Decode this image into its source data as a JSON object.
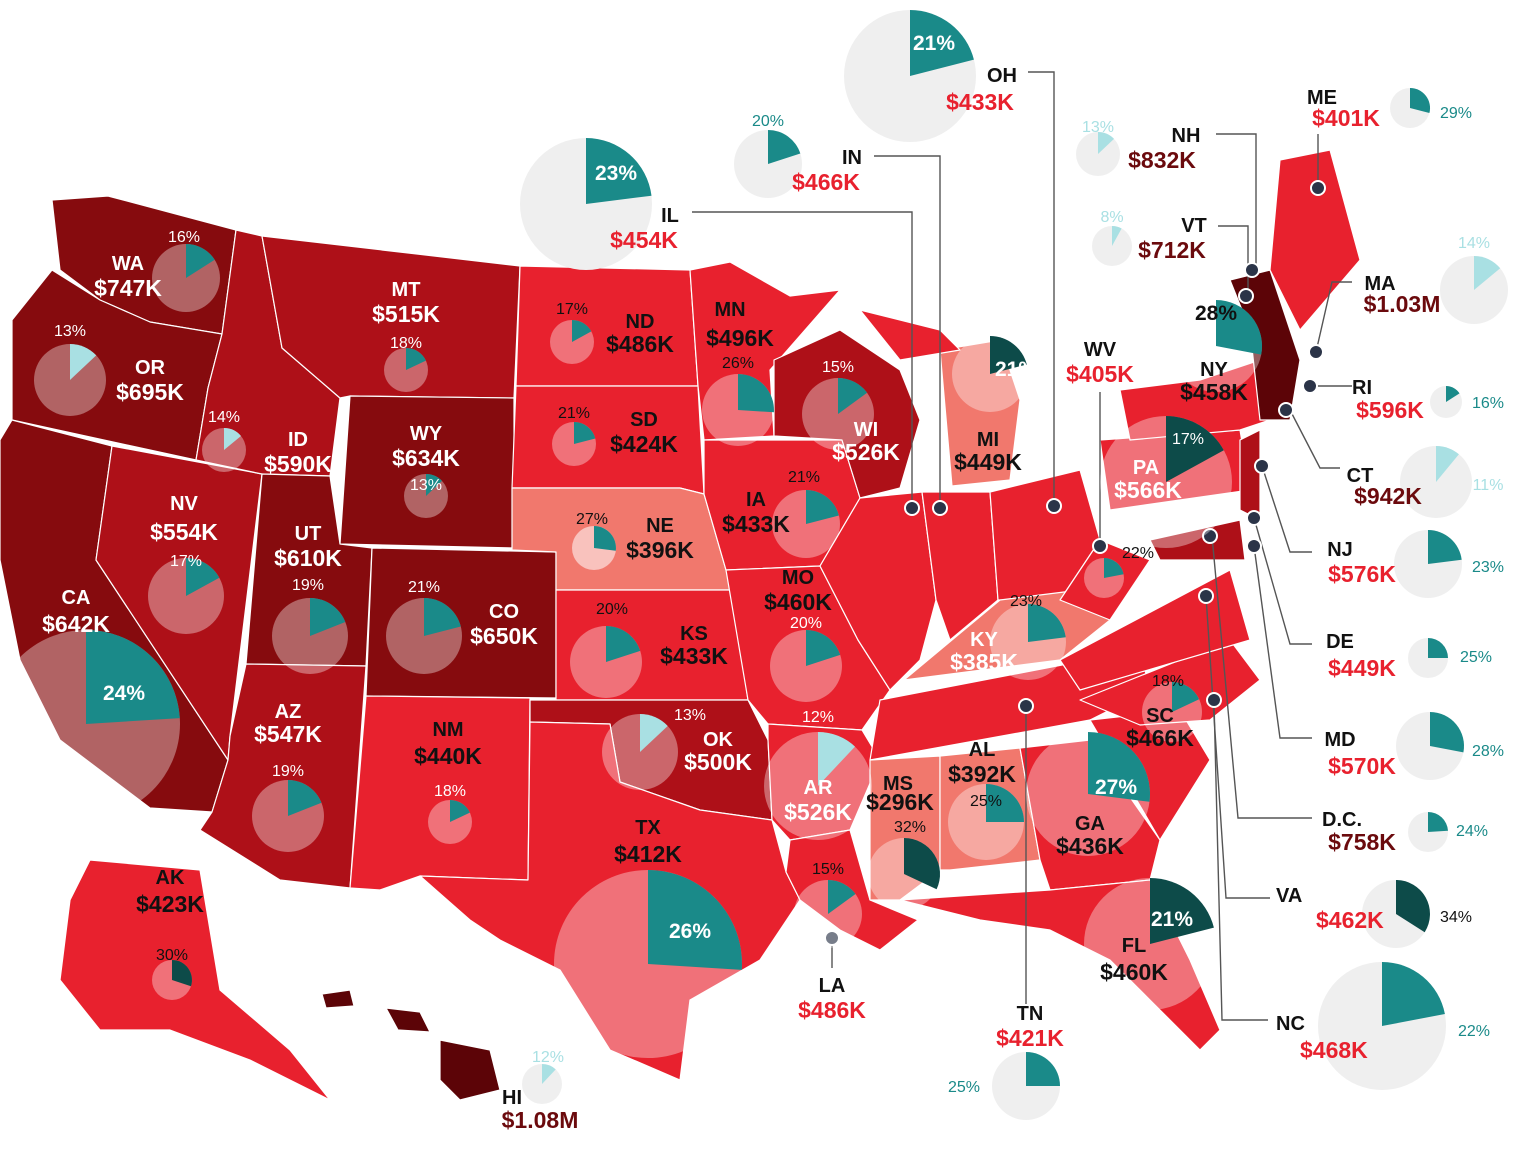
{
  "colors": {
    "tier1": "#e8212e",
    "tier2": "#ae1018",
    "tier3": "#860b0e",
    "tier4": "#5c0407",
    "tier_low": "#f1786d",
    "pie_bg": "#efefef",
    "pie_teal": "#1a8a89",
    "pie_light": "#a9e0e3",
    "pie_dark": "#0d4b49",
    "text_red": "#e8212e",
    "text_dark": "#6b0a0d",
    "text_black": "#111111",
    "leader": "#555555"
  },
  "states": [
    {
      "abbr": "WA",
      "value": "$747K",
      "pct": "16%",
      "pct_value": 16
    },
    {
      "abbr": "OR",
      "value": "$695K",
      "pct": "13%",
      "pct_value": 13
    },
    {
      "abbr": "CA",
      "value": "$642K",
      "pct": "24%",
      "pct_value": 24
    },
    {
      "abbr": "NV",
      "value": "$554K",
      "pct": "17%",
      "pct_value": 17
    },
    {
      "abbr": "ID",
      "value": "$590K",
      "pct": "14%",
      "pct_value": 14
    },
    {
      "abbr": "MT",
      "value": "$515K",
      "pct": "18%",
      "pct_value": 18
    },
    {
      "abbr": "WY",
      "value": "$634K",
      "pct": "13%",
      "pct_value": 13
    },
    {
      "abbr": "UT",
      "value": "$610K",
      "pct": "19%",
      "pct_value": 19
    },
    {
      "abbr": "CO",
      "value": "$650K",
      "pct": "21%",
      "pct_value": 21
    },
    {
      "abbr": "AZ",
      "value": "$547K",
      "pct": "19%",
      "pct_value": 19
    },
    {
      "abbr": "NM",
      "value": "$440K",
      "pct": "18%",
      "pct_value": 18
    },
    {
      "abbr": "ND",
      "value": "$486K",
      "pct": "17%",
      "pct_value": 17
    },
    {
      "abbr": "SD",
      "value": "$424K",
      "pct": "21%",
      "pct_value": 21
    },
    {
      "abbr": "NE",
      "value": "$396K",
      "pct": "27%",
      "pct_value": 27
    },
    {
      "abbr": "KS",
      "value": "$433K",
      "pct": "20%",
      "pct_value": 20
    },
    {
      "abbr": "OK",
      "value": "$500K",
      "pct": "13%",
      "pct_value": 13
    },
    {
      "abbr": "TX",
      "value": "$412K",
      "pct": "26%",
      "pct_value": 26
    },
    {
      "abbr": "MN",
      "value": "$496K",
      "pct": "26%",
      "pct_value": 26
    },
    {
      "abbr": "IA",
      "value": "$433K",
      "pct": "21%",
      "pct_value": 21
    },
    {
      "abbr": "MO",
      "value": "$460K",
      "pct": "20%",
      "pct_value": 20
    },
    {
      "abbr": "AR",
      "value": "$526K",
      "pct": "12%",
      "pct_value": 12
    },
    {
      "abbr": "LA",
      "value": "$486K",
      "pct": "15%",
      "pct_value": 15
    },
    {
      "abbr": "WI",
      "value": "$526K",
      "pct": "15%",
      "pct_value": 15
    },
    {
      "abbr": "IL",
      "value": "$454K",
      "pct": "23%",
      "pct_value": 23
    },
    {
      "abbr": "IN",
      "value": "$466K",
      "pct": "20%",
      "pct_value": 20
    },
    {
      "abbr": "MI",
      "value": "$449K",
      "pct": "21%",
      "pct_value": 21
    },
    {
      "abbr": "OH",
      "value": "$433K",
      "pct": "21%",
      "pct_value": 21
    },
    {
      "abbr": "KY",
      "value": "$385K",
      "pct": "23%",
      "pct_value": 23
    },
    {
      "abbr": "TN",
      "value": "$421K",
      "pct": "25%",
      "pct_value": 25
    },
    {
      "abbr": "MS",
      "value": "$296K",
      "pct": "32%",
      "pct_value": 32
    },
    {
      "abbr": "AL",
      "value": "$392K",
      "pct": "25%",
      "pct_value": 25
    },
    {
      "abbr": "GA",
      "value": "$436K",
      "pct": "27%",
      "pct_value": 27
    },
    {
      "abbr": "FL",
      "value": "$460K",
      "pct": "21%",
      "pct_value": 21
    },
    {
      "abbr": "SC",
      "value": "$466K",
      "pct": "18%",
      "pct_value": 18
    },
    {
      "abbr": "NC",
      "value": "$468K",
      "pct": "22%",
      "pct_value": 22
    },
    {
      "abbr": "VA",
      "value": "$462K",
      "pct": "34%",
      "pct_value": 34
    },
    {
      "abbr": "WV",
      "value": "$405K",
      "pct": "22%",
      "pct_value": 22
    },
    {
      "abbr": "PA",
      "value": "$566K",
      "pct": "17%",
      "pct_value": 17
    },
    {
      "abbr": "NY",
      "value": "$458K",
      "pct": "28%",
      "pct_value": 28
    },
    {
      "abbr": "VT",
      "value": "$712K",
      "pct": "8%",
      "pct_value": 8
    },
    {
      "abbr": "NH",
      "value": "$832K",
      "pct": "13%",
      "pct_value": 13
    },
    {
      "abbr": "ME",
      "value": "$401K",
      "pct": "29%",
      "pct_value": 29
    },
    {
      "abbr": "MA",
      "value": "$1.03M",
      "pct": "14%",
      "pct_value": 14
    },
    {
      "abbr": "RI",
      "value": "$596K",
      "pct": "16%",
      "pct_value": 16
    },
    {
      "abbr": "CT",
      "value": "$942K",
      "pct": "11%",
      "pct_value": 11
    },
    {
      "abbr": "NJ",
      "value": "$576K",
      "pct": "23%",
      "pct_value": 23
    },
    {
      "abbr": "DE",
      "value": "$449K",
      "pct": "25%",
      "pct_value": 25
    },
    {
      "abbr": "MD",
      "value": "$570K",
      "pct": "28%",
      "pct_value": 28
    },
    {
      "abbr": "D.C.",
      "value": "$758K",
      "pct": "24%",
      "pct_value": 24
    },
    {
      "abbr": "AK",
      "value": "$423K",
      "pct": "30%",
      "pct_value": 30
    },
    {
      "abbr": "HI",
      "value": "$1.08M",
      "pct": "12%",
      "pct_value": 12
    }
  ]
}
